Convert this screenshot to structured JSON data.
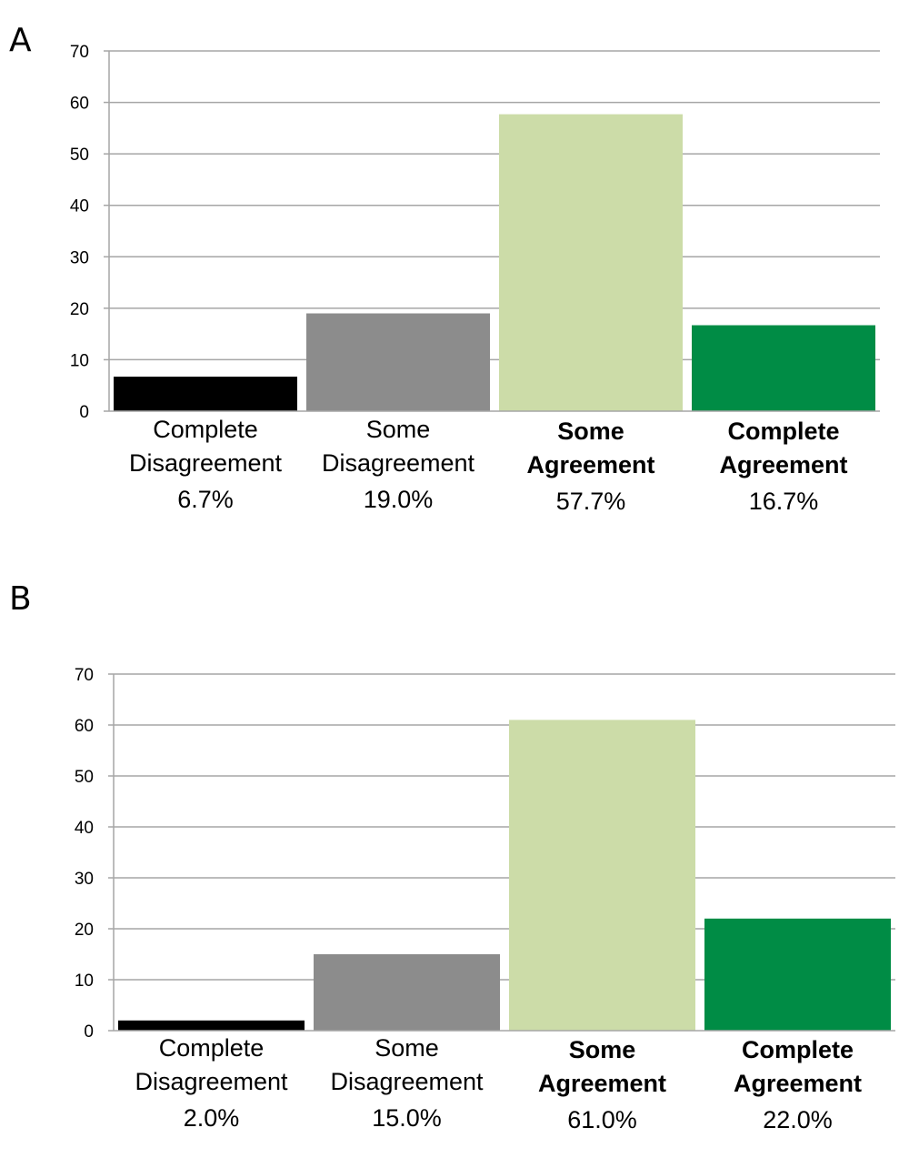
{
  "chart_data": [
    {
      "panel_label": "A",
      "type": "bar",
      "categories": [
        {
          "line1": "Complete",
          "line2": "Disagreement",
          "pct": "6.7%",
          "bold": false
        },
        {
          "line1": "Some",
          "line2": "Disagreement",
          "pct": "19.0%",
          "bold": false
        },
        {
          "line1": "Some",
          "line2": "Agreement",
          "pct": "57.7%",
          "bold": true
        },
        {
          "line1": "Complete",
          "line2": "Agreement",
          "pct": "16.7%",
          "bold": true
        }
      ],
      "values": [
        6.7,
        19.0,
        57.7,
        16.7
      ],
      "colors": [
        "#000000",
        "#8c8c8c",
        "#ccdca8",
        "#008c45"
      ],
      "ylim": [
        0,
        70
      ],
      "yticks": [
        "0",
        "10",
        "20",
        "30",
        "40",
        "50",
        "60",
        "70"
      ],
      "grid": true,
      "legend": "none"
    },
    {
      "panel_label": "B",
      "type": "bar",
      "categories": [
        {
          "line1": "Complete",
          "line2": "Disagreement",
          "pct": "2.0%",
          "bold": false
        },
        {
          "line1": "Some",
          "line2": "Disagreement",
          "pct": "15.0%",
          "bold": false
        },
        {
          "line1": "Some",
          "line2": "Agreement",
          "pct": "61.0%",
          "bold": true
        },
        {
          "line1": "Complete",
          "line2": "Agreement",
          "pct": "22.0%",
          "bold": true
        }
      ],
      "values": [
        2.0,
        15.0,
        61.0,
        22.0
      ],
      "colors": [
        "#000000",
        "#8c8c8c",
        "#ccdca8",
        "#008c45"
      ],
      "ylim": [
        0,
        70
      ],
      "yticks": [
        "0",
        "10",
        "20",
        "30",
        "40",
        "50",
        "60",
        "70"
      ],
      "grid": true,
      "legend": "none"
    }
  ]
}
